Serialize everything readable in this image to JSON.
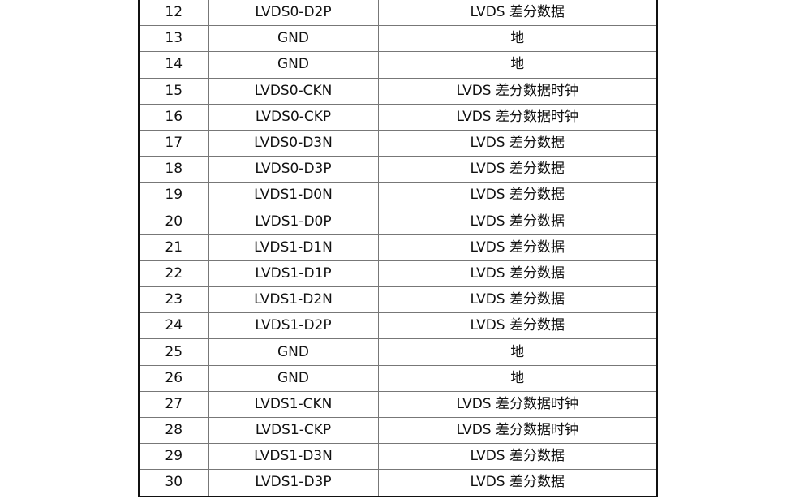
{
  "rows": [
    {
      "pin": "12",
      "signal": "LVDS0-D2P",
      "description": "LVDS 差分数据"
    },
    {
      "pin": "13",
      "signal": "GND",
      "description": "地"
    },
    {
      "pin": "14",
      "signal": "GND",
      "description": "地"
    },
    {
      "pin": "15",
      "signal": "LVDS0-CKN",
      "description": "LVDS 差分数据时钟"
    },
    {
      "pin": "16",
      "signal": "LVDS0-CKP",
      "description": "LVDS 差分数据时钟"
    },
    {
      "pin": "17",
      "signal": "LVDS0-D3N",
      "description": "LVDS 差分数据"
    },
    {
      "pin": "18",
      "signal": "LVDS0-D3P",
      "description": "LVDS 差分数据"
    },
    {
      "pin": "19",
      "signal": "LVDS1-D0N",
      "description": "LVDS 差分数据"
    },
    {
      "pin": "20",
      "signal": "LVDS1-D0P",
      "description": "LVDS 差分数据"
    },
    {
      "pin": "21",
      "signal": "LVDS1-D1N",
      "description": "LVDS 差分数据"
    },
    {
      "pin": "22",
      "signal": "LVDS1-D1P",
      "description": "LVDS 差分数据"
    },
    {
      "pin": "23",
      "signal": "LVDS1-D2N",
      "description": "LVDS 差分数据"
    },
    {
      "pin": "24",
      "signal": "LVDS1-D2P",
      "description": "LVDS 差分数据"
    },
    {
      "pin": "25",
      "signal": "GND",
      "description": "地"
    },
    {
      "pin": "26",
      "signal": "GND",
      "description": "地"
    },
    {
      "pin": "27",
      "signal": "LVDS1-CKN",
      "description": "LVDS 差分数据时钟"
    },
    {
      "pin": "28",
      "signal": "LVDS1-CKP",
      "description": "LVDS 差分数据时钟"
    },
    {
      "pin": "29",
      "signal": "LVDS1-D3N",
      "description": "LVDS 差分数据"
    },
    {
      "pin": "30",
      "signal": "LVDS1-D3P",
      "description": "LVDS 差分数据"
    }
  ]
}
